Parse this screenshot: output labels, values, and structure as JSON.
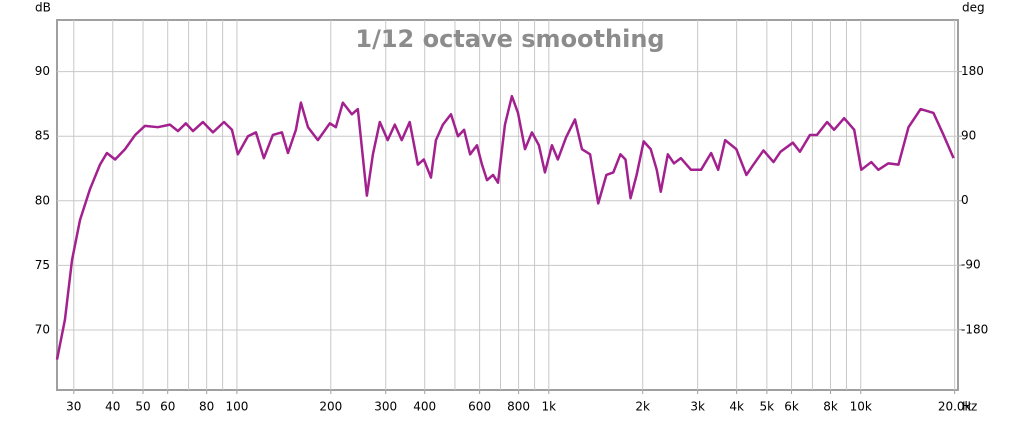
{
  "chart_data": {
    "type": "line",
    "title": "1/12 octave smoothing",
    "ylabel": "dB",
    "y2label": "deg",
    "xunit": "Hz",
    "xscale": "log",
    "grid": true,
    "xlim": [
      26.5,
      20500
    ],
    "ylim": [
      65.35,
      94
    ],
    "y2lim": [
      -264,
      252
    ],
    "xticks": [
      30,
      40,
      50,
      60,
      80,
      100,
      200,
      300,
      400,
      600,
      800,
      {
        "value": 1000,
        "label": "1k"
      },
      {
        "value": 2000,
        "label": "2k"
      },
      {
        "value": 3000,
        "label": "3k"
      },
      {
        "value": 4000,
        "label": "4k"
      },
      {
        "value": 5000,
        "label": "5k"
      },
      {
        "value": 6000,
        "label": "6k"
      },
      {
        "value": 8000,
        "label": "8k"
      },
      {
        "value": 10000,
        "label": "10k"
      },
      {
        "value": 20000,
        "label": "20.0k"
      }
    ],
    "xgrid": [
      30,
      40,
      50,
      60,
      70,
      80,
      90,
      100,
      200,
      300,
      400,
      500,
      600,
      700,
      800,
      900,
      1000,
      2000,
      3000,
      4000,
      5000,
      6000,
      7000,
      8000,
      9000,
      10000,
      20000
    ],
    "yticks": [
      70,
      75,
      80,
      85,
      90
    ],
    "y2ticks": [
      -180,
      -90,
      0,
      90,
      180
    ],
    "x": [
      26.5,
      28.1,
      29.6,
      31.4,
      33.8,
      36.4,
      38.3,
      40.7,
      43.8,
      47.2,
      50.7,
      55.8,
      61,
      64.7,
      68.6,
      72.3,
      77.8,
      83.8,
      90.9,
      96.4,
      100.7,
      108.5,
      115.1,
      122,
      130.4,
      139.4,
      145.8,
      154.6,
      160.4,
      169,
      181.8,
      198.6,
      207.6,
      218.6,
      233.6,
      244.2,
      261,
      272.9,
      287.2,
      304.4,
      320.8,
      337.6,
      358.1,
      380.2,
      397.4,
      418.9,
      434.6,
      457.5,
      485.6,
      511.5,
      534.9,
      559.3,
      588.4,
      610.6,
      633.6,
      662.3,
      687.2,
      723.3,
      761.4,
      796.5,
      838.6,
      882.8,
      929.4,
      971.5,
      1023,
      1069,
      1135,
      1213,
      1277,
      1356,
      1440,
      1529,
      1610,
      1696,
      1761,
      1828,
      1912,
      2014,
      2121,
      2218,
      2285,
      2407,
      2518,
      2651,
      2856,
      3076,
      3314,
      3490,
      3675,
      3991,
      4299,
      4527,
      4876,
      5252,
      5531,
      6058,
      6382,
      6873,
      7238,
      7799,
      8212,
      8846,
      9528,
      10038,
      10810,
      11385,
      12263,
      13207,
      14226,
      15555,
      17104,
      18421,
      19840
    ],
    "series": [
      {
        "color": "#a3218e",
        "values": [
          67.7,
          70.8,
          75.4,
          78.5,
          80.9,
          82.8,
          83.7,
          83.2,
          84.0,
          85.1,
          85.8,
          85.7,
          85.9,
          85.4,
          86.0,
          85.4,
          86.1,
          85.3,
          86.1,
          85.5,
          83.6,
          85.0,
          85.3,
          83.3,
          85.1,
          85.3,
          83.7,
          85.5,
          87.6,
          85.7,
          84.7,
          86.0,
          85.7,
          87.6,
          86.7,
          87.1,
          80.4,
          83.6,
          86.1,
          84.7,
          85.9,
          84.7,
          86.1,
          82.8,
          83.2,
          81.8,
          84.7,
          85.9,
          86.7,
          85.0,
          85.5,
          83.6,
          84.3,
          82.8,
          81.6,
          82.0,
          81.4,
          85.9,
          88.1,
          86.8,
          84.0,
          85.3,
          84.3,
          82.2,
          84.3,
          83.2,
          84.9,
          86.3,
          84.0,
          83.6,
          79.8,
          82.0,
          82.2,
          83.6,
          83.2,
          80.2,
          82.0,
          84.6,
          84.0,
          82.4,
          80.7,
          83.6,
          82.9,
          83.3,
          82.4,
          82.4,
          83.7,
          82.4,
          84.7,
          84.0,
          82.0,
          82.8,
          83.9,
          83.0,
          83.8,
          84.5,
          83.8,
          85.1,
          85.1,
          86.1,
          85.5,
          86.4,
          85.5,
          82.4,
          83.0,
          82.4,
          82.9,
          82.8,
          85.7,
          87.1,
          86.8,
          85.1,
          83.3
        ]
      }
    ]
  }
}
